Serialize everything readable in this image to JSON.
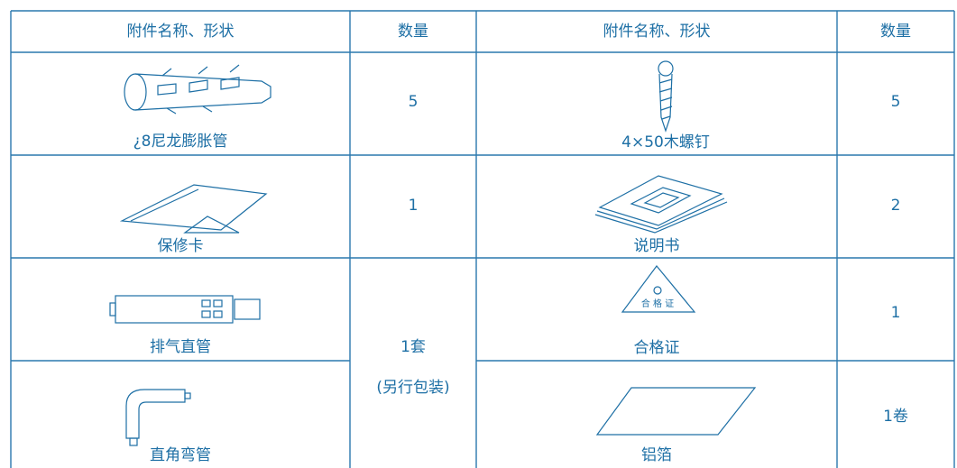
{
  "table": {
    "header": [
      "附件名称、形状",
      "数量",
      "附件名称、形状",
      "数量"
    ],
    "rows": [
      {
        "left": {
          "name": "¿8尼龙膨胀管",
          "quantity": "5"
        },
        "right": {
          "name": "4×50木螺钉",
          "quantity": "5"
        }
      },
      {
        "left": {
          "name": "保修卡",
          "quantity": "1"
        },
        "right": {
          "name": "说明书",
          "quantity": "2"
        }
      },
      {
        "left": {
          "name": "排气直管",
          "quantity": "1套",
          "quantity_note": "(另行包装)"
        },
        "right": {
          "name": "合格证",
          "icon_text": "合 格 证",
          "quantity": "1"
        }
      },
      {
        "left": {
          "name": "直角弯管"
        },
        "right": {
          "name": "铝箔",
          "quantity": "1卷"
        }
      }
    ]
  }
}
